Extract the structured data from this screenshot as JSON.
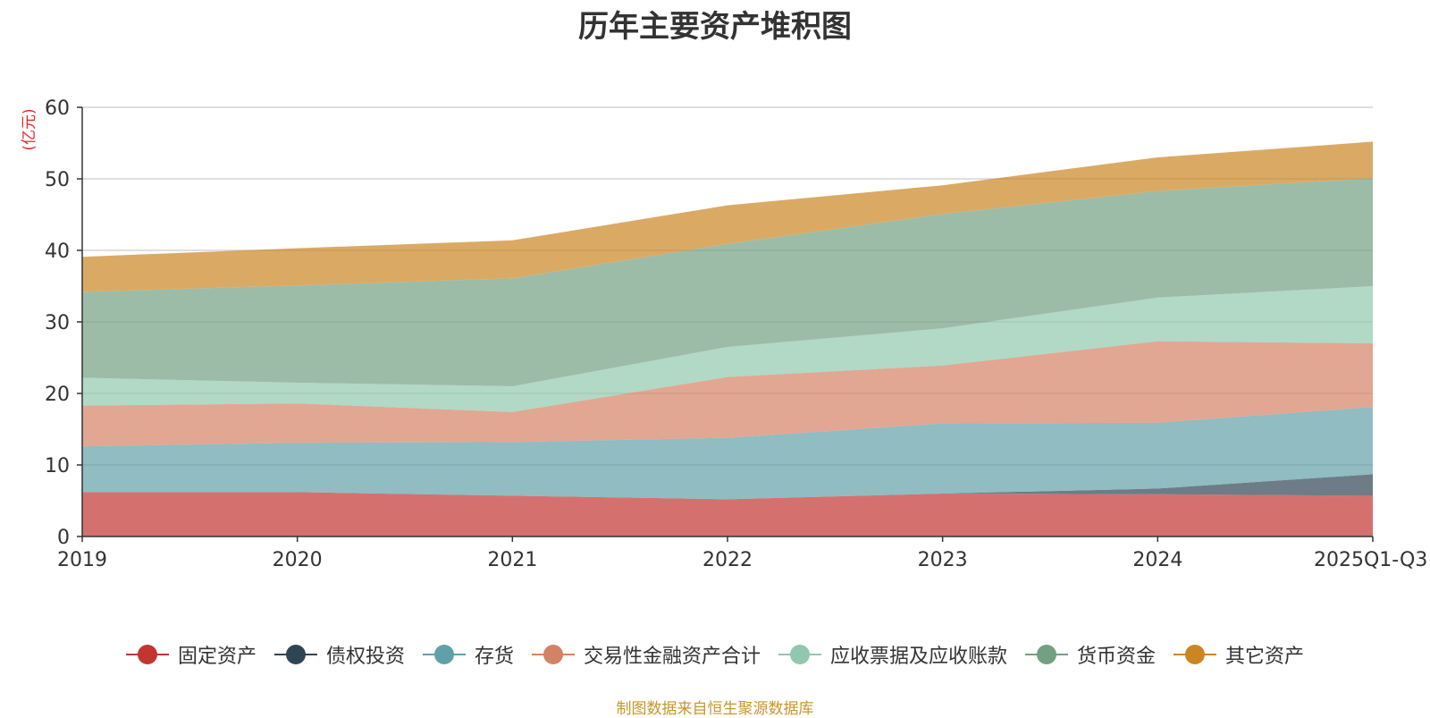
{
  "chart_data": {
    "type": "area",
    "stacked": true,
    "title": "历年主要资产堆积图",
    "unit_label": "(亿元)",
    "categories": [
      "2019",
      "2020",
      "2021",
      "2022",
      "2023",
      "2024",
      "2025Q1-Q3"
    ],
    "y_ticks": [
      "0",
      "10",
      "20",
      "30",
      "40",
      "50",
      "60"
    ],
    "ylim": [
      0,
      60
    ],
    "grid": true,
    "legend_position": "bottom",
    "series": [
      {
        "name": "固定资产",
        "color": "#c23531",
        "values": [
          6.2,
          6.2,
          5.7,
          5.2,
          6.0,
          5.9,
          5.7
        ]
      },
      {
        "name": "债权投资",
        "color": "#2f4554",
        "values": [
          0,
          0,
          0,
          0,
          0,
          0.8,
          3.0
        ]
      },
      {
        "name": "存货",
        "color": "#61a0a8",
        "values": [
          6.4,
          6.9,
          7.5,
          8.6,
          9.8,
          9.2,
          9.4
        ]
      },
      {
        "name": "交易性金融资产合计",
        "color": "#d48265",
        "values": [
          5.7,
          5.5,
          4.2,
          8.5,
          8.1,
          11.4,
          8.9
        ]
      },
      {
        "name": "应收票据及应收账款",
        "color": "#91c7ae",
        "values": [
          3.9,
          2.9,
          3.6,
          4.2,
          5.2,
          6.1,
          8.0
        ]
      },
      {
        "name": "货币资金",
        "color": "#749f83",
        "values": [
          12.0,
          13.6,
          15.1,
          14.4,
          16.0,
          14.9,
          15.1
        ]
      },
      {
        "name": "其它资产",
        "color": "#ca8622",
        "values": [
          4.9,
          5.2,
          5.3,
          5.4,
          4.0,
          4.7,
          5.1
        ]
      }
    ],
    "source": "制图数据来自恒生聚源数据库"
  }
}
